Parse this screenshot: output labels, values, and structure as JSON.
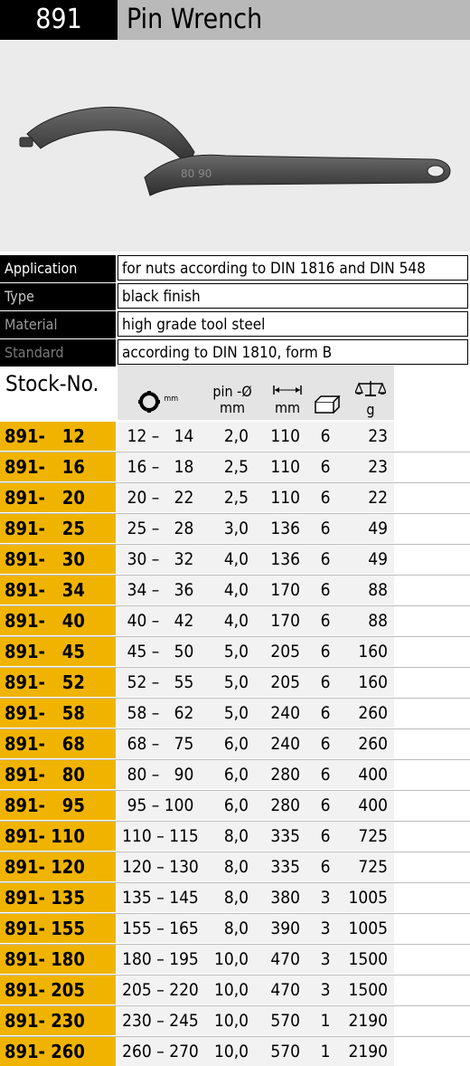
{
  "header": {
    "number": "891",
    "title": "Pin Wrench"
  },
  "photo": {
    "alt": "pin wrench product image",
    "stamp": "80 90"
  },
  "properties": [
    {
      "label": "Application",
      "value": "for nuts according to DIN 1816 and DIN 548"
    },
    {
      "label": "Type",
      "value": "black finish"
    },
    {
      "label": "Material",
      "value": "high grade tool steel"
    },
    {
      "label": "Standard",
      "value": "according to DIN 1810, form B"
    }
  ],
  "table": {
    "stock_label": "Stock-No.",
    "headers": {
      "range_unit": "mm",
      "pin_line1": "pin -Ø",
      "pin_line2": "mm",
      "length_unit": "mm",
      "weight_unit": "g"
    },
    "rows": [
      {
        "stock": "891-   12",
        "range": "12 –   14",
        "pin": "2,0",
        "length": "110",
        "pack": "6",
        "weight": "23"
      },
      {
        "stock": "891-   16",
        "range": "16 –   18",
        "pin": "2,5",
        "length": "110",
        "pack": "6",
        "weight": "23"
      },
      {
        "stock": "891-   20",
        "range": "20 –   22",
        "pin": "2,5",
        "length": "110",
        "pack": "6",
        "weight": "22"
      },
      {
        "stock": "891-   25",
        "range": "25 –   28",
        "pin": "3,0",
        "length": "136",
        "pack": "6",
        "weight": "49"
      },
      {
        "stock": "891-   30",
        "range": "30 –   32",
        "pin": "4,0",
        "length": "136",
        "pack": "6",
        "weight": "49"
      },
      {
        "stock": "891-   34",
        "range": "34 –   36",
        "pin": "4,0",
        "length": "170",
        "pack": "6",
        "weight": "88"
      },
      {
        "stock": "891-   40",
        "range": "40 –   42",
        "pin": "4,0",
        "length": "170",
        "pack": "6",
        "weight": "88"
      },
      {
        "stock": "891-   45",
        "range": "45 –   50",
        "pin": "5,0",
        "length": "205",
        "pack": "6",
        "weight": "160"
      },
      {
        "stock": "891-   52",
        "range": "52 –   55",
        "pin": "5,0",
        "length": "205",
        "pack": "6",
        "weight": "160"
      },
      {
        "stock": "891-   58",
        "range": "58 –   62",
        "pin": "5,0",
        "length": "240",
        "pack": "6",
        "weight": "260"
      },
      {
        "stock": "891-   68",
        "range": "68 –   75",
        "pin": "6,0",
        "length": "240",
        "pack": "6",
        "weight": "260"
      },
      {
        "stock": "891-   80",
        "range": "80 –   90",
        "pin": "6,0",
        "length": "280",
        "pack": "6",
        "weight": "400"
      },
      {
        "stock": "891-   95",
        "range": "95 – 100",
        "pin": "6,0",
        "length": "280",
        "pack": "6",
        "weight": "400"
      },
      {
        "stock": "891- 110",
        "range": "110 – 115",
        "pin": "8,0",
        "length": "335",
        "pack": "6",
        "weight": "725"
      },
      {
        "stock": "891- 120",
        "range": "120 – 130",
        "pin": "8,0",
        "length": "335",
        "pack": "6",
        "weight": "725"
      },
      {
        "stock": "891- 135",
        "range": "135 – 145",
        "pin": "8,0",
        "length": "380",
        "pack": "3",
        "weight": "1005"
      },
      {
        "stock": "891- 155",
        "range": "155 – 165",
        "pin": "8,0",
        "length": "390",
        "pack": "3",
        "weight": "1005"
      },
      {
        "stock": "891- 180",
        "range": "180 – 195",
        "pin": "10,0",
        "length": "470",
        "pack": "3",
        "weight": "1500"
      },
      {
        "stock": "891- 205",
        "range": "205 – 220",
        "pin": "10,0",
        "length": "470",
        "pack": "3",
        "weight": "1500"
      },
      {
        "stock": "891- 230",
        "range": "230 – 245",
        "pin": "10,0",
        "length": "570",
        "pack": "1",
        "weight": "2190"
      },
      {
        "stock": "891- 260",
        "range": "260 – 270",
        "pin": "10,0",
        "length": "570",
        "pack": "1",
        "weight": "2190"
      }
    ]
  },
  "colors": {
    "stock_cell": "#f0b400",
    "header_band": "#b9b9b9",
    "label_bg": "#000000"
  }
}
